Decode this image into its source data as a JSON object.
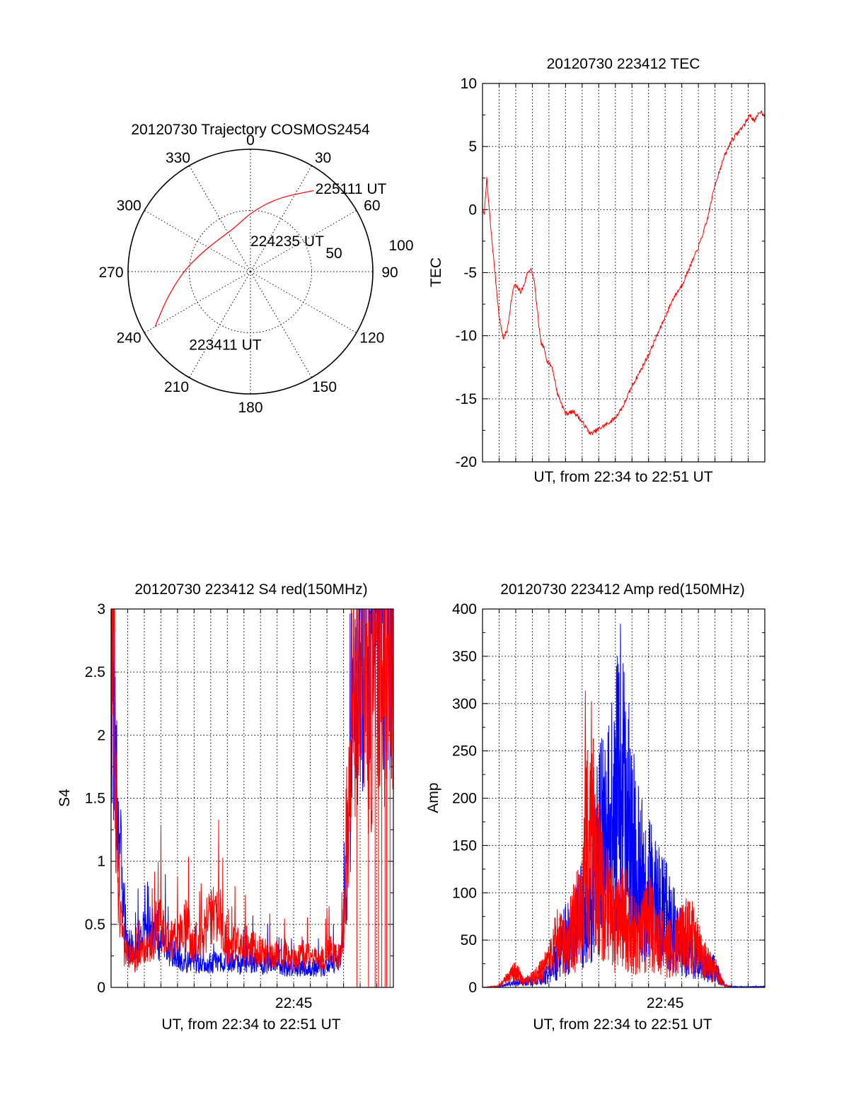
{
  "chart_data": [
    {
      "type": "polar",
      "title": "20120730 Trajectory COSMOS2454",
      "angle_labels": [
        "0",
        "30",
        "60",
        "90",
        "120",
        "150",
        "180",
        "210",
        "240",
        "270",
        "300",
        "330"
      ],
      "radius_labels": [
        "50",
        "100"
      ],
      "rlim": [
        0,
        100
      ],
      "series": [
        {
          "color": "#ff0000",
          "points": [
            {
              "az": 240,
              "r": 90
            },
            {
              "az": 252,
              "r": 72
            },
            {
              "az": 270,
              "r": 55
            },
            {
              "az": 290,
              "r": 43
            },
            {
              "az": 315,
              "r": 37
            },
            {
              "az": 340,
              "r": 38
            },
            {
              "az": 0,
              "r": 48
            },
            {
              "az": 20,
              "r": 64
            },
            {
              "az": 38,
              "r": 84
            }
          ]
        }
      ],
      "annotations": [
        {
          "text": "225111 UT",
          "az": 38,
          "r": 86
        },
        {
          "text": "224235 UT",
          "az": 0,
          "r": 25
        },
        {
          "text": "223411 UT",
          "az": 220,
          "r": 78
        }
      ],
      "grid": true
    },
    {
      "type": "line",
      "title": "20120730 223412 TEC",
      "xlabel": "UT, from 22:34 to 22:51 UT",
      "ylabel": "TEC",
      "xlim": [
        0,
        17
      ],
      "ylim": [
        -20,
        10
      ],
      "yticks": [
        "10",
        "5",
        "0",
        "-5",
        "-10",
        "-15",
        "-20"
      ],
      "grid": true,
      "series": [
        {
          "color": "#ff0000",
          "x": [
            0,
            0.1,
            0.25,
            0.5,
            0.75,
            1.0,
            1.25,
            1.5,
            1.7,
            1.9,
            2.1,
            2.3,
            2.5,
            2.7,
            2.9,
            3.1,
            3.3,
            3.5,
            3.7,
            3.9,
            4.2,
            4.5,
            5.0,
            5.5,
            5.8,
            6.2,
            6.5,
            7.0,
            7.5,
            8.0,
            8.5,
            9.0,
            9.5,
            10.0,
            10.5,
            11.0,
            11.5,
            12.0,
            12.5,
            13.0,
            13.5,
            14.0,
            14.5,
            15.0,
            15.5,
            15.8,
            16.1,
            16.4,
            16.7,
            17.0
          ],
          "values": [
            0,
            -0.5,
            2.5,
            -1.5,
            -5.0,
            -8.5,
            -10.2,
            -9.5,
            -7.5,
            -6.0,
            -6.2,
            -6.5,
            -6.0,
            -5.0,
            -4.7,
            -5.5,
            -8.0,
            -10.5,
            -11.0,
            -12.0,
            -12.5,
            -14.5,
            -16.2,
            -16.0,
            -16.5,
            -17.2,
            -17.8,
            -17.4,
            -17.0,
            -16.5,
            -15.5,
            -14.0,
            -12.8,
            -11.5,
            -10.0,
            -8.5,
            -7.0,
            -6.0,
            -4.5,
            -3.0,
            -1.0,
            2.0,
            4.0,
            5.5,
            6.3,
            6.8,
            7.5,
            7.0,
            7.8,
            7.5
          ]
        }
      ]
    },
    {
      "type": "line",
      "title": "20120730 223412 S4 red(150MHz)",
      "xlabel": "UT, from 22:34 to 22:51 UT",
      "ylabel": "S4",
      "xlim": [
        0,
        17
      ],
      "ylim": [
        0,
        3
      ],
      "xticks": [
        {
          "x": 11,
          "label": "22:45"
        }
      ],
      "yticks": [
        "3",
        "2.5",
        "2",
        "1.5",
        "1",
        "0.5",
        "0"
      ],
      "grid": true,
      "series": [
        {
          "color": "#ff0000",
          "x": [
            0,
            0.1,
            0.3,
            0.5,
            0.8,
            1.0,
            1.5,
            2.0,
            2.5,
            2.8,
            3.0,
            3.5,
            4.0,
            4.5,
            5.0,
            5.5,
            6.0,
            6.5,
            7.0,
            7.5,
            8.0,
            8.5,
            9.0,
            9.5,
            10.0,
            10.5,
            11.0,
            11.5,
            12.0,
            12.5,
            13.0,
            13.3,
            13.6,
            13.9,
            14.2,
            14.5,
            15.0,
            15.5,
            16.0,
            16.5,
            17.0
          ],
          "values": [
            3.0,
            2.6,
            1.2,
            0.6,
            0.25,
            0.3,
            0.2,
            0.3,
            0.35,
            0.55,
            0.5,
            0.35,
            0.4,
            0.5,
            0.35,
            0.4,
            0.6,
            0.55,
            0.3,
            0.35,
            0.3,
            0.3,
            0.3,
            0.28,
            0.25,
            0.25,
            0.2,
            0.25,
            0.25,
            0.2,
            0.25,
            0.3,
            0.25,
            0.3,
            0.9,
            2.2,
            2.5,
            2.0,
            2.6,
            2.3,
            2.8
          ]
        },
        {
          "color": "#0000ff",
          "x": [
            0,
            0.1,
            0.3,
            0.5,
            0.8,
            1.0,
            1.5,
            2.0,
            2.5,
            3.0,
            3.5,
            4.0,
            4.5,
            5.0,
            5.5,
            6.0,
            6.5,
            7.0,
            7.5,
            8.0,
            8.5,
            9.0,
            9.5,
            10.0,
            10.5,
            11.0,
            11.5,
            12.0,
            12.5,
            13.0,
            13.3,
            13.6,
            13.9,
            14.2,
            14.5,
            15.0,
            15.5,
            16.0,
            16.5,
            17.0
          ],
          "values": [
            2.8,
            2.3,
            1.9,
            1.2,
            0.6,
            0.35,
            0.3,
            0.4,
            0.45,
            0.35,
            0.3,
            0.25,
            0.2,
            0.2,
            0.18,
            0.2,
            0.2,
            0.22,
            0.18,
            0.2,
            0.2,
            0.18,
            0.2,
            0.18,
            0.15,
            0.15,
            0.15,
            0.15,
            0.15,
            0.15,
            0.2,
            0.2,
            0.3,
            0.9,
            1.8,
            2.6,
            3.0,
            3.0,
            3.0,
            3.0
          ]
        }
      ]
    },
    {
      "type": "line",
      "title": "20120730 223412 Amp red(150MHz)",
      "xlabel": "UT, from 22:34 to 22:51 UT",
      "ylabel": "Amp",
      "xlim": [
        0,
        17
      ],
      "ylim": [
        0,
        400
      ],
      "xticks": [
        {
          "x": 11,
          "label": "22:45"
        }
      ],
      "yticks": [
        "400",
        "350",
        "300",
        "250",
        "200",
        "150",
        "100",
        "50",
        "0"
      ],
      "grid": true,
      "series": [
        {
          "color": "#0000ff",
          "x": [
            0,
            1.0,
            1.5,
            2.0,
            3.0,
            3.5,
            4.0,
            4.5,
            5.0,
            5.5,
            6.0,
            6.5,
            7.0,
            7.5,
            8.0,
            8.3,
            8.6,
            9.0,
            9.5,
            10.0,
            10.5,
            11.0,
            11.5,
            12.0,
            12.5,
            13.0,
            13.5,
            14.0,
            14.3,
            14.6,
            15.0,
            16.0,
            17.0
          ],
          "values": [
            0,
            1,
            5,
            8,
            10,
            12,
            25,
            45,
            80,
            90,
            120,
            150,
            220,
            250,
            280,
            345,
            300,
            230,
            180,
            160,
            140,
            120,
            95,
            70,
            55,
            50,
            35,
            30,
            15,
            3,
            1,
            1,
            1
          ]
        },
        {
          "color": "#ff0000",
          "x": [
            0,
            1.0,
            1.5,
            2.0,
            2.5,
            3.0,
            3.5,
            4.0,
            4.5,
            5.0,
            5.5,
            6.0,
            6.2,
            6.4,
            6.6,
            6.8,
            7.0,
            7.5,
            8.0,
            8.5,
            9.0,
            9.5,
            10.0,
            10.5,
            11.0,
            11.5,
            12.0,
            12.5,
            13.0,
            13.5,
            14.0,
            14.3,
            14.6,
            15.0,
            17.0
          ],
          "values": [
            0,
            2,
            15,
            25,
            10,
            15,
            25,
            40,
            75,
            60,
            100,
            120,
            330,
            150,
            340,
            160,
            180,
            130,
            100,
            120,
            90,
            80,
            110,
            75,
            70,
            60,
            80,
            90,
            60,
            40,
            25,
            15,
            3,
            0,
            0
          ]
        }
      ]
    }
  ]
}
